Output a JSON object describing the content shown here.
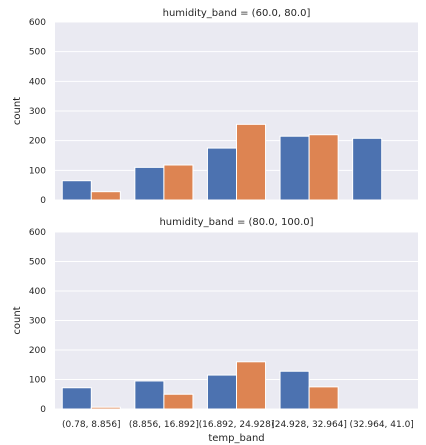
{
  "colors": {
    "plot_background": "#eaeaf2",
    "grid": "#ffffff",
    "series_blue": "#4c72b0",
    "series_orange": "#dd8452"
  },
  "chart_data": [
    {
      "type": "bar",
      "title": "humidity_band = (60.0, 80.0]",
      "xlabel": "",
      "ylabel": "count",
      "ylim": [
        0,
        600
      ],
      "yticks": [
        0,
        100,
        200,
        300,
        400,
        500,
        600
      ],
      "grid": true,
      "categories": [
        "(0.78, 8.856]",
        "(8.856, 16.892]",
        "(16.892, 24.928]",
        "(24.928, 32.964]",
        "(32.964, 41.0]"
      ],
      "show_category_labels": false,
      "series": [
        {
          "color": "#4c72b0",
          "values": [
            65,
            110,
            175,
            215,
            208
          ]
        },
        {
          "color": "#dd8452",
          "values": [
            28,
            118,
            255,
            220,
            null
          ]
        }
      ]
    },
    {
      "type": "bar",
      "title": "humidity_band = (80.0, 100.0]",
      "xlabel": "temp_band",
      "ylabel": "count",
      "ylim": [
        0,
        600
      ],
      "yticks": [
        0,
        100,
        200,
        300,
        400,
        500,
        600
      ],
      "grid": true,
      "categories": [
        "(0.78, 8.856]",
        "(8.856, 16.892]",
        "(16.892, 24.928]",
        "(24.928, 32.964]",
        "(32.964, 41.0]"
      ],
      "show_category_labels": true,
      "series": [
        {
          "color": "#4c72b0",
          "values": [
            72,
            95,
            115,
            128,
            null
          ]
        },
        {
          "color": "#dd8452",
          "values": [
            6,
            50,
            160,
            75,
            null
          ]
        }
      ]
    }
  ]
}
